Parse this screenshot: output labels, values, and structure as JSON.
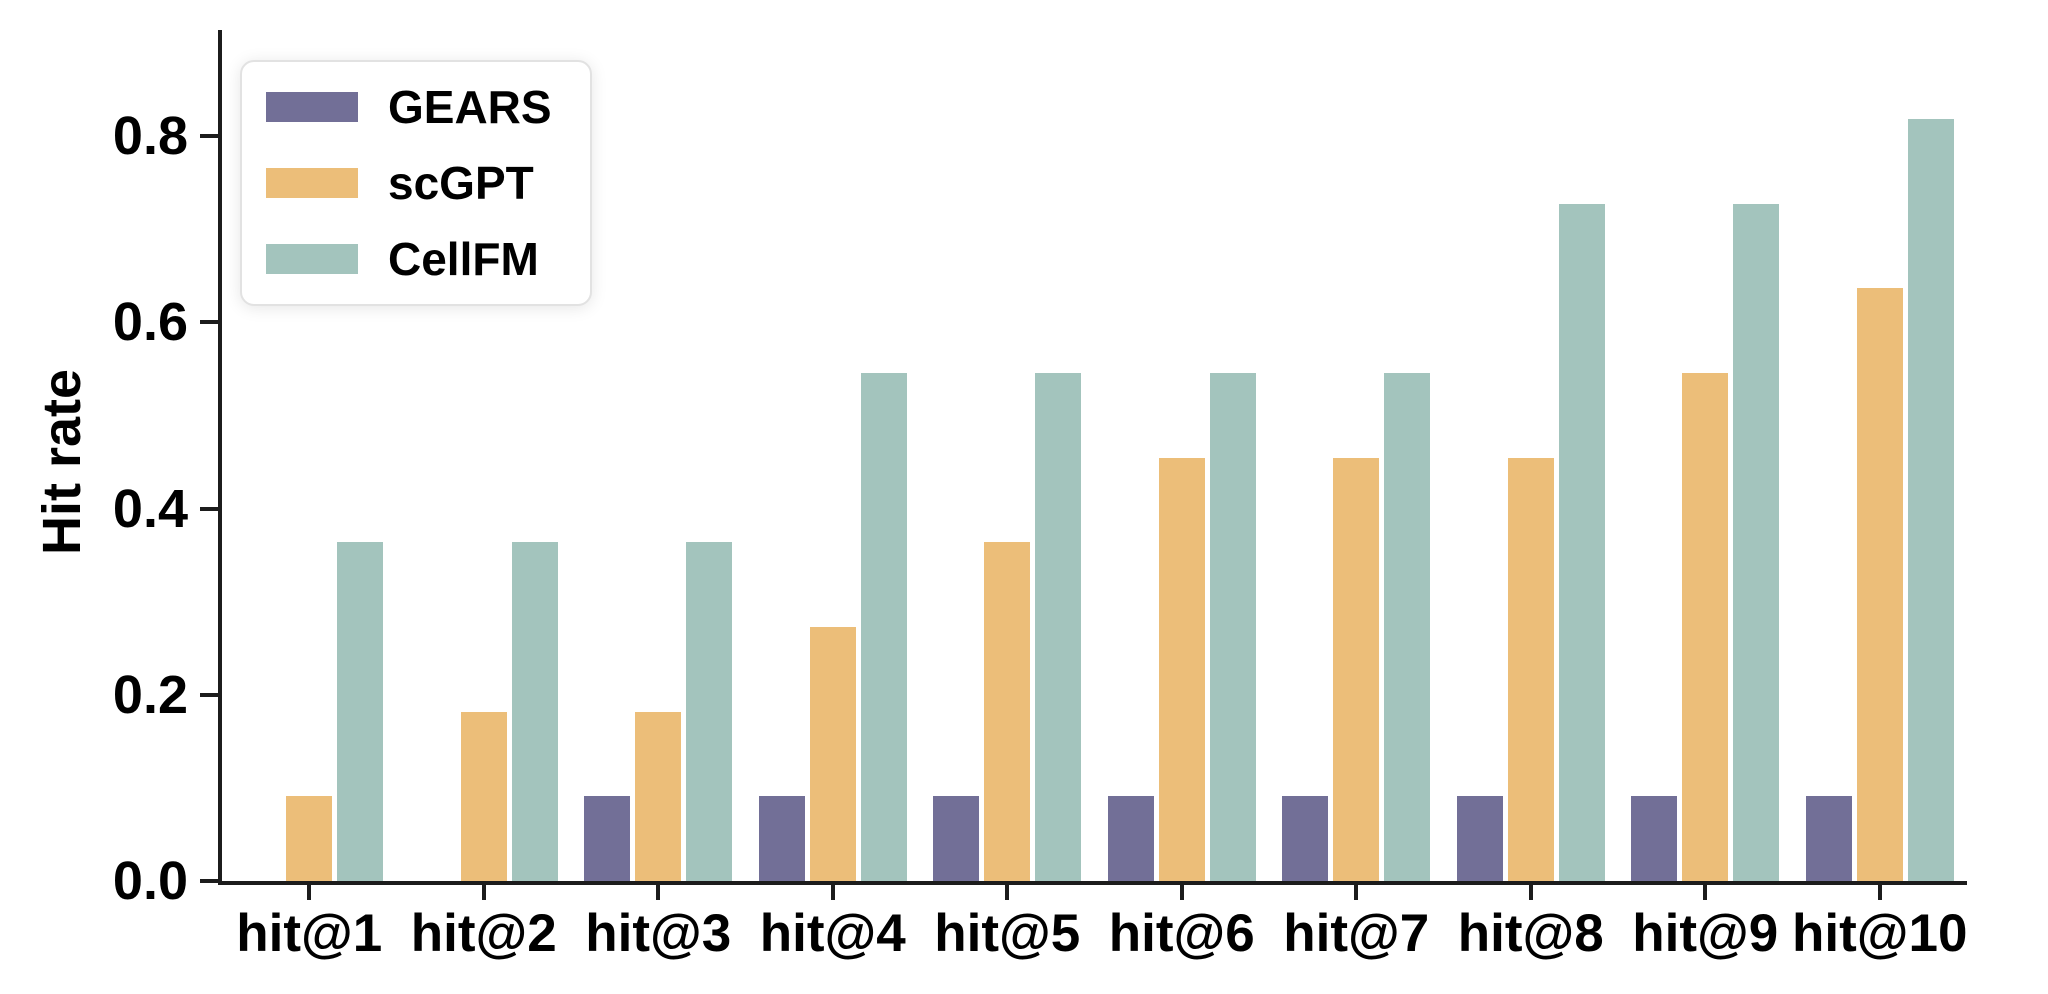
{
  "figure": {
    "background": "#ffffff",
    "axis_color": "#1c1c1c",
    "text_color": "#000000"
  },
  "chart_data": {
    "type": "bar",
    "title": "",
    "xlabel": "",
    "ylabel": "Hit rate",
    "categories": [
      "hit@1",
      "hit@2",
      "hit@3",
      "hit@4",
      "hit@5",
      "hit@6",
      "hit@7",
      "hit@8",
      "hit@9",
      "hit@10"
    ],
    "series": [
      {
        "name": "GEARS",
        "color": "#726f97",
        "values": [
          0.0,
          0.0,
          0.0909,
          0.0909,
          0.0909,
          0.0909,
          0.0909,
          0.0909,
          0.0909,
          0.0909
        ]
      },
      {
        "name": "scGPT",
        "color": "#ecbe79",
        "values": [
          0.0909,
          0.1818,
          0.1818,
          0.2727,
          0.3636,
          0.4545,
          0.4545,
          0.4545,
          0.5455,
          0.6364
        ]
      },
      {
        "name": "CellFM",
        "color": "#a3c4bd",
        "values": [
          0.3636,
          0.3636,
          0.3636,
          0.5455,
          0.5455,
          0.5455,
          0.5455,
          0.7273,
          0.7273,
          0.8182
        ]
      }
    ],
    "ylim": [
      0,
      0.914
    ],
    "yticks": [
      "0.0",
      "0.2",
      "0.4",
      "0.6",
      "0.8"
    ],
    "ytick_values": [
      0.0,
      0.2,
      0.4,
      0.6,
      0.8
    ],
    "grid": false,
    "legend_position": "upper left"
  }
}
